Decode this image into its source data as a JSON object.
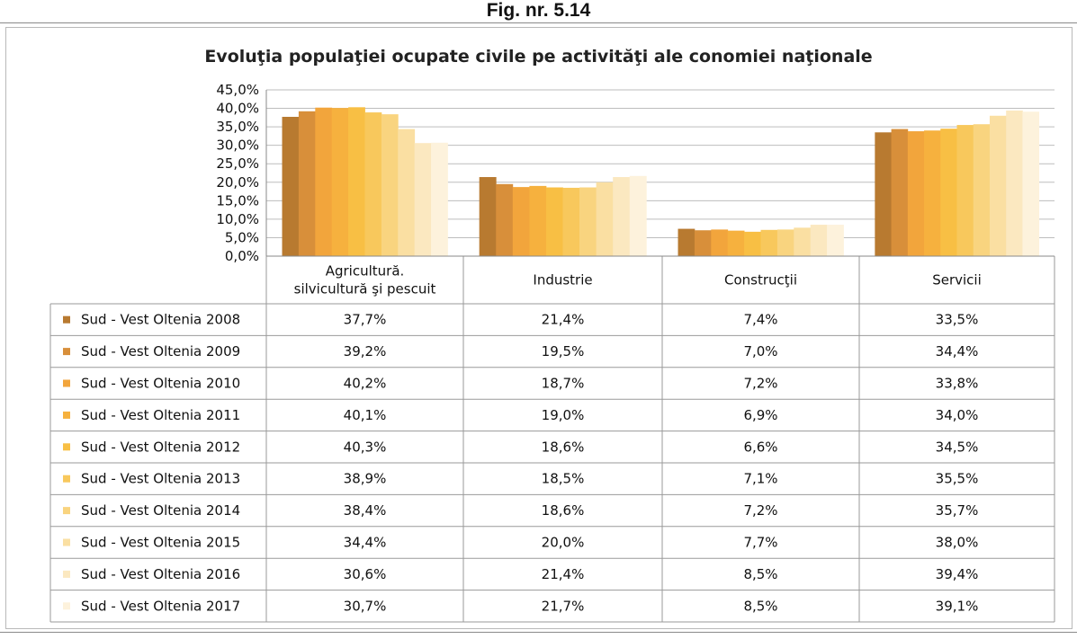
{
  "figure": {
    "caption": "Fig. nr. 5.14"
  },
  "chart_data": {
    "type": "bar",
    "title": "Evoluţia populaţiei ocupate civile pe activităţi ale conomiei naţionale",
    "categories": [
      "Agricultură. silvicultură şi pescuit",
      "Industrie",
      "Construcţii",
      "Servicii"
    ],
    "category_lines": [
      [
        "Agricultură.",
        "silvicultură şi pescuit"
      ],
      [
        "Industrie"
      ],
      [
        "Construcţii"
      ],
      [
        "Servicii"
      ]
    ],
    "ylim": [
      0,
      45
    ],
    "yticks": [
      "0,0%",
      "5,0%",
      "10,0%",
      "15,0%",
      "20,0%",
      "25,0%",
      "30,0%",
      "35,0%",
      "40,0%",
      "45,0%"
    ],
    "grid": true,
    "legend": "data-table",
    "series": [
      {
        "name": "Sud - Vest Oltenia 2008",
        "color": "#b87a30",
        "values": [
          37.7,
          21.4,
          7.4,
          33.5
        ],
        "labels": [
          "37,7%",
          "21,4%",
          "7,4%",
          "33,5%"
        ]
      },
      {
        "name": "Sud - Vest Oltenia 2009",
        "color": "#d88f3a",
        "values": [
          39.2,
          19.5,
          7.0,
          34.4
        ],
        "labels": [
          "39,2%",
          "19,5%",
          "7,0%",
          "34,4%"
        ]
      },
      {
        "name": "Sud - Vest Oltenia 2010",
        "color": "#f2a53c",
        "values": [
          40.2,
          18.7,
          7.2,
          33.8
        ],
        "labels": [
          "40,2%",
          "18,7%",
          "7,2%",
          "33,8%"
        ]
      },
      {
        "name": "Sud - Vest Oltenia 2011",
        "color": "#f6b13e",
        "values": [
          40.1,
          19.0,
          6.9,
          34.0
        ],
        "labels": [
          "40,1%",
          "19,0%",
          "6,9%",
          "34,0%"
        ]
      },
      {
        "name": "Sud - Vest Oltenia 2012",
        "color": "#f8bf44",
        "values": [
          40.3,
          18.6,
          6.6,
          34.5
        ],
        "labels": [
          "40,3%",
          "18,6%",
          "6,6%",
          "34,5%"
        ]
      },
      {
        "name": "Sud - Vest Oltenia 2013",
        "color": "#f8c85c",
        "values": [
          38.9,
          18.5,
          7.1,
          35.5
        ],
        "labels": [
          "38,9%",
          "18,5%",
          "7,1%",
          "35,5%"
        ]
      },
      {
        "name": "Sud - Vest Oltenia 2014",
        "color": "#f9d47f",
        "values": [
          38.4,
          18.6,
          7.2,
          35.7
        ],
        "labels": [
          "38,4%",
          "18,6%",
          "7,2%",
          "35,7%"
        ]
      },
      {
        "name": "Sud - Vest Oltenia 2015",
        "color": "#fadfa2",
        "values": [
          34.4,
          20.0,
          7.7,
          38.0
        ],
        "labels": [
          "34,4%",
          "20,0%",
          "7,7%",
          "38,0%"
        ]
      },
      {
        "name": "Sud - Vest Oltenia 2016",
        "color": "#fbe8c0",
        "values": [
          30.6,
          21.4,
          8.5,
          39.4
        ],
        "labels": [
          "30,6%",
          "21,4%",
          "8,5%",
          "39,4%"
        ]
      },
      {
        "name": "Sud - Vest Oltenia 2017",
        "color": "#fdf2dc",
        "values": [
          30.7,
          21.7,
          8.5,
          39.1
        ],
        "labels": [
          "30,7%",
          "21,7%",
          "8,5%",
          "39,1%"
        ]
      }
    ]
  }
}
